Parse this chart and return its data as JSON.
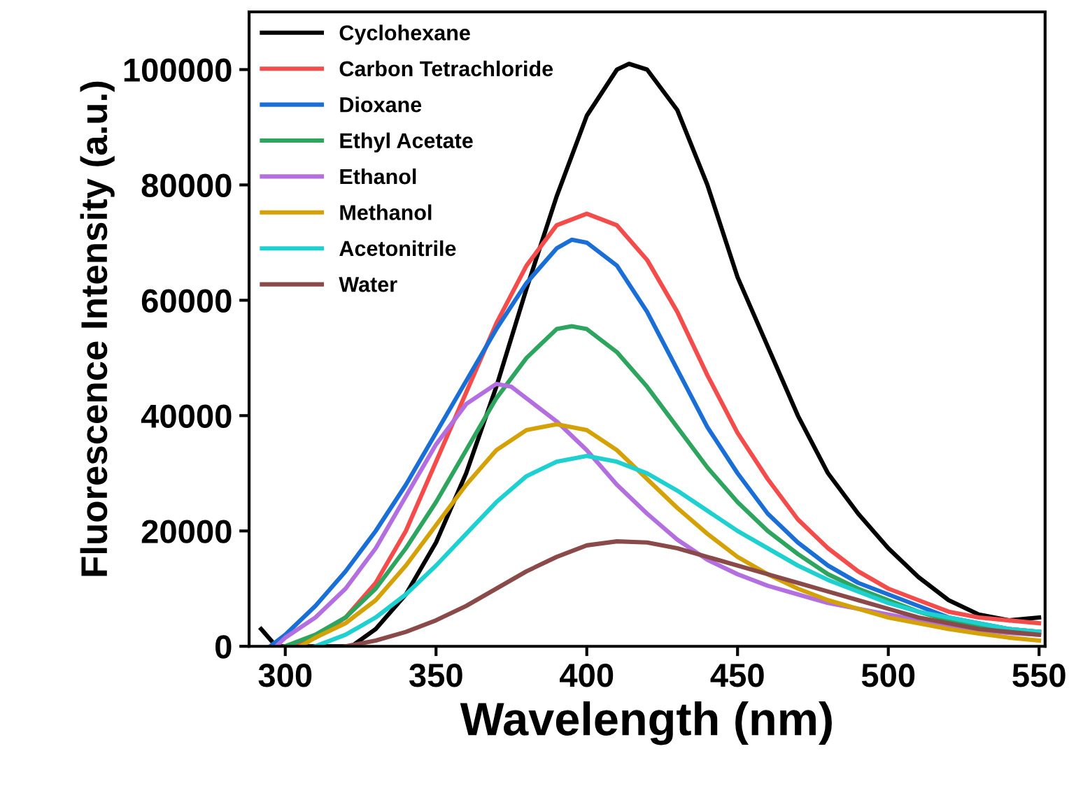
{
  "chart_data": {
    "type": "line",
    "xlabel": "Wavelength (nm)",
    "ylabel": "Fluorescence Intensity (a.u.)",
    "xlim": [
      288,
      552
    ],
    "xticks": [
      300,
      350,
      400,
      450,
      500,
      550
    ],
    "ylim": [
      0,
      110000
    ],
    "yticks": [
      0,
      20000,
      40000,
      60000,
      80000,
      100000
    ],
    "grid": false,
    "legend": "top left",
    "marker": "none",
    "line_style": "solid",
    "series": [
      {
        "name": "Cyclohexane",
        "color": "#000000",
        "x": [
          292,
          297,
          322,
          330,
          340,
          350,
          360,
          370,
          380,
          390,
          400,
          410,
          414,
          420,
          430,
          440,
          450,
          460,
          470,
          480,
          490,
          500,
          510,
          520,
          530,
          540,
          550
        ],
        "values": [
          3000,
          0,
          0,
          3000,
          9000,
          18000,
          30000,
          45000,
          62000,
          78000,
          92000,
          100000,
          101000,
          100000,
          93000,
          80000,
          64000,
          52000,
          40000,
          30000,
          23000,
          17000,
          12000,
          8000,
          5500,
          4500,
          5000
        ]
      },
      {
        "name": "Carbon Tetrachloride",
        "color": "#f44b4b",
        "x": [
          300,
          310,
          320,
          330,
          340,
          350,
          360,
          370,
          380,
          390,
          400,
          410,
          420,
          430,
          440,
          450,
          460,
          470,
          480,
          490,
          500,
          510,
          520,
          530,
          540,
          550
        ],
        "values": [
          0,
          1500,
          5000,
          11000,
          20000,
          32000,
          44000,
          56000,
          66000,
          73000,
          75000,
          73000,
          67000,
          58000,
          47000,
          37000,
          29000,
          22000,
          17000,
          13000,
          10000,
          8000,
          6000,
          5000,
          4500,
          4000
        ]
      },
      {
        "name": "Dioxane",
        "color": "#1a6fd6",
        "x": [
          295,
          300,
          310,
          320,
          330,
          340,
          350,
          360,
          370,
          380,
          390,
          395,
          400,
          410,
          420,
          430,
          440,
          450,
          460,
          470,
          480,
          490,
          500,
          510,
          520,
          530,
          540,
          550
        ],
        "values": [
          0,
          2000,
          7000,
          13000,
          20000,
          28000,
          37000,
          46000,
          55000,
          63000,
          69000,
          70500,
          70000,
          66000,
          58000,
          48000,
          38000,
          30000,
          23000,
          18000,
          14000,
          11000,
          9000,
          7000,
          5000,
          4000,
          3000,
          2500
        ]
      },
      {
        "name": "Ethyl Acetate",
        "color": "#2ea55f",
        "x": [
          300,
          310,
          320,
          330,
          340,
          350,
          360,
          370,
          380,
          390,
          395,
          400,
          410,
          420,
          430,
          440,
          450,
          460,
          470,
          480,
          490,
          500,
          510,
          520,
          530,
          540,
          550
        ],
        "values": [
          0,
          2000,
          5000,
          10000,
          17000,
          25000,
          34000,
          43000,
          50000,
          55000,
          55500,
          55000,
          51000,
          45000,
          38000,
          31000,
          25000,
          20000,
          16000,
          12500,
          10000,
          8000,
          6000,
          4500,
          3500,
          3000,
          2500
        ]
      },
      {
        "name": "Ethanol",
        "color": "#b36ee0",
        "x": [
          297,
          300,
          310,
          320,
          330,
          340,
          350,
          360,
          370,
          375,
          380,
          390,
          400,
          410,
          420,
          430,
          440,
          450,
          460,
          470,
          480,
          490,
          500,
          510,
          520,
          530,
          540,
          550
        ],
        "values": [
          0,
          1500,
          5000,
          10000,
          17000,
          26000,
          35000,
          42000,
          45500,
          45000,
          43000,
          39000,
          34000,
          28000,
          23000,
          18500,
          15000,
          12500,
          10500,
          9000,
          7500,
          6500,
          5500,
          4500,
          3500,
          2800,
          2300,
          2000
        ]
      },
      {
        "name": "Methanol",
        "color": "#d4a106",
        "x": [
          305,
          310,
          320,
          330,
          340,
          350,
          360,
          370,
          380,
          390,
          400,
          410,
          420,
          430,
          440,
          450,
          460,
          470,
          480,
          490,
          500,
          510,
          520,
          530,
          540,
          550
        ],
        "values": [
          0,
          1500,
          4000,
          8000,
          14000,
          21000,
          28000,
          34000,
          37500,
          38500,
          37500,
          34000,
          29000,
          24000,
          19500,
          15500,
          12500,
          10000,
          8000,
          6500,
          5000,
          4000,
          3000,
          2200,
          1500,
          1000
        ]
      },
      {
        "name": "Acetonitrile",
        "color": "#1fd0d0",
        "x": [
          310,
          320,
          330,
          340,
          350,
          360,
          370,
          380,
          390,
          400,
          410,
          420,
          430,
          440,
          450,
          460,
          470,
          480,
          490,
          500,
          510,
          520,
          530,
          540,
          550
        ],
        "values": [
          0,
          2000,
          5000,
          9000,
          14000,
          19500,
          25000,
          29500,
          32000,
          33000,
          32000,
          30000,
          27000,
          23500,
          20000,
          17000,
          14000,
          11500,
          9500,
          7500,
          6000,
          5000,
          4000,
          3000,
          2500
        ]
      },
      {
        "name": "Water",
        "color": "#8b4a4a",
        "x": [
          320,
          330,
          340,
          350,
          360,
          370,
          380,
          390,
          400,
          410,
          420,
          430,
          440,
          450,
          460,
          470,
          480,
          490,
          500,
          510,
          520,
          530,
          540,
          550
        ],
        "values": [
          0,
          1000,
          2500,
          4500,
          7000,
          10000,
          13000,
          15500,
          17500,
          18200,
          18000,
          17000,
          15500,
          14000,
          12500,
          11000,
          9500,
          8000,
          6500,
          5000,
          4000,
          3000,
          2500,
          2000
        ]
      }
    ]
  }
}
